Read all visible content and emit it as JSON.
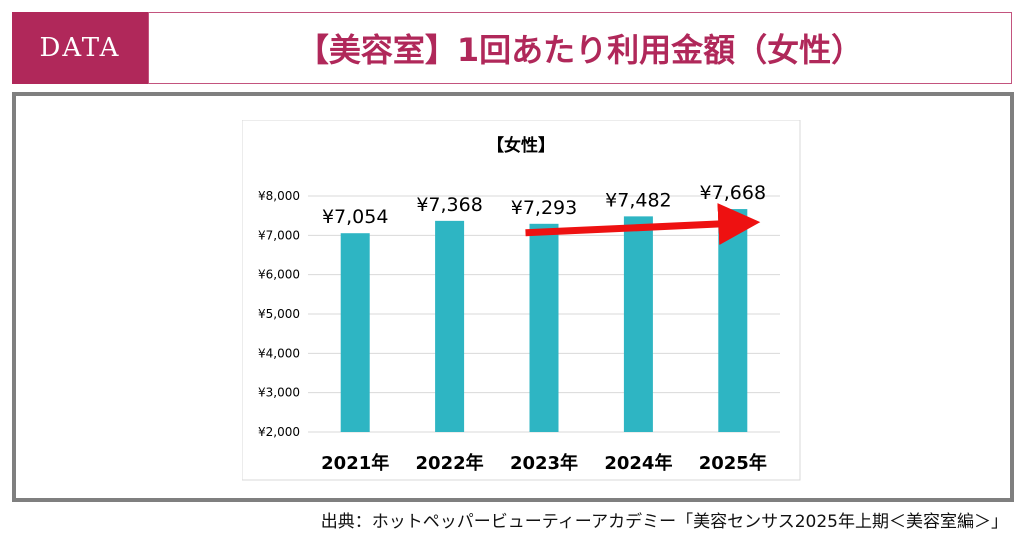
{
  "header": {
    "badge": "DATA",
    "title": "【美容室】1回あたり利用金額（女性）"
  },
  "chart_data": {
    "type": "bar",
    "title": "【女性】",
    "categories": [
      "2021年",
      "2022年",
      "2023年",
      "2024年",
      "2025年"
    ],
    "values": [
      7054,
      7368,
      7293,
      7482,
      7668
    ],
    "value_labels": [
      "¥7,054",
      "¥7,368",
      "¥7,293",
      "¥7,482",
      "¥7,668"
    ],
    "y_ticks": [
      2000,
      3000,
      4000,
      5000,
      6000,
      7000,
      8000
    ],
    "y_tick_labels": [
      "¥2,000",
      "¥3,000",
      "¥4,000",
      "¥5,000",
      "¥6,000",
      "¥7,000",
      "¥8,000"
    ],
    "ylim": [
      2000,
      8000
    ],
    "grid": true,
    "bar_color": "#2eb5c3",
    "trend_arrow": {
      "from_category": "2023年",
      "to_category": "2025年",
      "color": "#ee1111"
    }
  },
  "footer": {
    "source": "出典：ホットペッパービューティーアカデミー「美容センサス2025年上期＜美容室編＞」"
  },
  "colors": {
    "accent": "#b0285a",
    "frame": "#7f7f7f"
  }
}
